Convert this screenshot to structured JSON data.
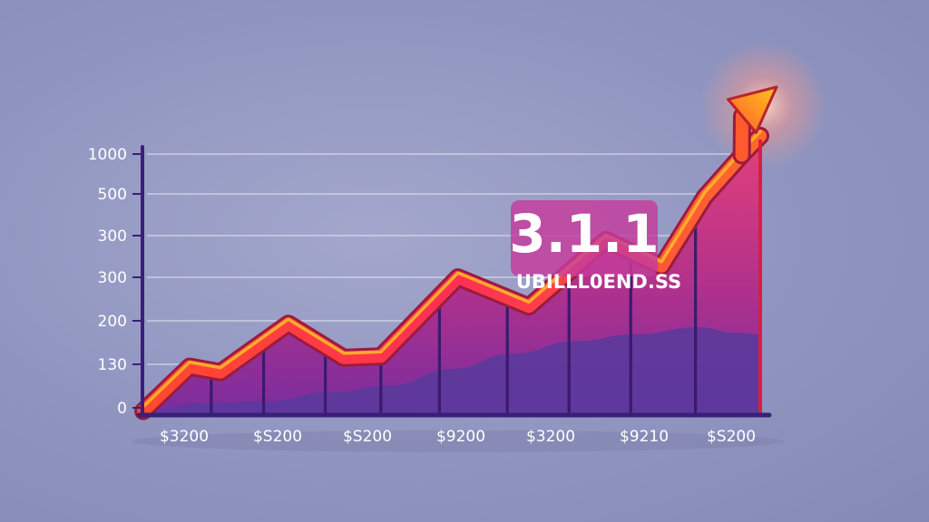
{
  "chart_data": {
    "type": "area",
    "y_tick_labels": [
      "1000",
      "500",
      "300",
      "300",
      "200",
      "130",
      "0"
    ],
    "x_tick_labels": [
      "$3200",
      "$S200",
      "$S200",
      "$9200",
      "$3200",
      "$9210",
      "$S200"
    ],
    "ylim": [
      0,
      1000
    ],
    "grid": true,
    "legend": "none",
    "series": [
      {
        "role": "trend-line",
        "x": [
          0,
          0.75,
          1.25,
          2.35,
          3.25,
          3.85,
          5.1,
          6.25,
          7.5,
          8.4,
          9.1,
          9.7,
          10
        ],
        "values": [
          8,
          168,
          148,
          323,
          200,
          205,
          490,
          385,
          625,
          530,
          780,
          930,
          1000
        ]
      },
      {
        "role": "back-wave",
        "x": [
          0,
          1,
          2,
          3,
          4,
          5,
          6,
          7,
          8,
          9,
          9.6,
          10
        ],
        "values": [
          10,
          35,
          42,
          75,
          100,
          160,
          215,
          260,
          285,
          310,
          290,
          285
        ]
      }
    ],
    "annotation": {
      "value": "3.1.1",
      "text": "UBILLL0END.SS"
    },
    "colors": {
      "line": "#ff2f4a",
      "line_highlight": "#ffb02a",
      "line_edge": "#9b1b3e",
      "area_top": "#d93a7a",
      "area_bottom": "#7b2ea0",
      "wave": "#5a3a9c",
      "axis": "#3a1f78",
      "arrow": "#ffb81c"
    }
  }
}
